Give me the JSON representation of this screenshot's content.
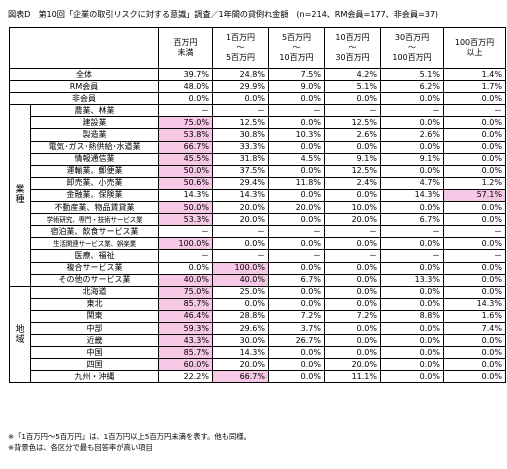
{
  "title": "図表D　第10回「企業の取引リスクに対する意識」調査／1年間の貸倒れ金額　(n=214、RM会員=177、非会員=37)",
  "columns": [
    "百万円\n未満",
    "1百万円\n～\n5百万円",
    "5百万円\n～\n10百万円",
    "10百万円\n～\n30百万円",
    "30百万円\n～\n100百万円",
    "100百万円\n以上"
  ],
  "summary_rows": [
    {
      "label": "全体",
      "values": [
        "39.7%",
        "24.8%",
        "7.5%",
        "4.2%",
        "5.1%",
        "1.4%"
      ],
      "hl": []
    },
    {
      "label": "RM会員",
      "values": [
        "48.0%",
        "29.9%",
        "9.0%",
        "5.1%",
        "6.2%",
        "1.7%"
      ],
      "hl": []
    },
    {
      "label": "非会員",
      "values": [
        "0.0%",
        "0.0%",
        "0.0%",
        "0.0%",
        "0.0%",
        "0.0%"
      ],
      "hl": []
    }
  ],
  "groups": [
    {
      "name": "業\n種",
      "rows": [
        {
          "label": "農業、林業",
          "values": [
            "－",
            "－",
            "－",
            "－",
            "－",
            "－"
          ],
          "hl": []
        },
        {
          "label": "建設業",
          "values": [
            "75.0%",
            "12.5%",
            "0.0%",
            "12.5%",
            "0.0%",
            "0.0%"
          ],
          "hl": [
            0
          ]
        },
        {
          "label": "製造業",
          "values": [
            "53.8%",
            "30.8%",
            "10.3%",
            "2.6%",
            "2.6%",
            "0.0%"
          ],
          "hl": [
            0
          ]
        },
        {
          "label": "電気･ガス･熱供給･水道業",
          "values": [
            "66.7%",
            "33.3%",
            "0.0%",
            "0.0%",
            "0.0%",
            "0.0%"
          ],
          "hl": [
            0
          ]
        },
        {
          "label": "情報通信業",
          "values": [
            "45.5%",
            "31.8%",
            "4.5%",
            "9.1%",
            "9.1%",
            "0.0%"
          ],
          "hl": [
            0
          ]
        },
        {
          "label": "運輸業、郵便業",
          "values": [
            "50.0%",
            "37.5%",
            "0.0%",
            "12.5%",
            "0.0%",
            "0.0%"
          ],
          "hl": [
            0
          ]
        },
        {
          "label": "卸売業、小売業",
          "values": [
            "50.6%",
            "29.4%",
            "11.8%",
            "2.4%",
            "4.7%",
            "1.2%"
          ],
          "hl": [
            0
          ]
        },
        {
          "label": "金融業、保険業",
          "values": [
            "14.3%",
            "14.3%",
            "0.0%",
            "0.0%",
            "14.3%",
            "57.1%"
          ],
          "hl": [
            5
          ]
        },
        {
          "label": "不動産業、物品賃貸業",
          "values": [
            "50.0%",
            "20.0%",
            "20.0%",
            "10.0%",
            "0.0%",
            "0.0%"
          ],
          "hl": [
            0
          ]
        },
        {
          "label": "学術研究、専門・技術サービス業",
          "values": [
            "53.3%",
            "20.0%",
            "0.0%",
            "20.0%",
            "6.7%",
            "0.0%"
          ],
          "hl": [
            0
          ],
          "small": true
        },
        {
          "label": "宿泊業、飲食サービス業",
          "values": [
            "－",
            "－",
            "－",
            "－",
            "－",
            "－"
          ],
          "hl": []
        },
        {
          "label": "生活関連サービス業、娯楽業",
          "values": [
            "100.0%",
            "0.0%",
            "0.0%",
            "0.0%",
            "0.0%",
            "0.0%"
          ],
          "hl": [
            0
          ],
          "small": true
        },
        {
          "label": "医療、福祉",
          "values": [
            "－",
            "－",
            "－",
            "－",
            "－",
            "－"
          ],
          "hl": []
        },
        {
          "label": "複合サービス業",
          "values": [
            "0.0%",
            "100.0%",
            "0.0%",
            "0.0%",
            "0.0%",
            "0.0%"
          ],
          "hl": [
            1
          ]
        },
        {
          "label": "その他のサービス業",
          "values": [
            "40.0%",
            "40.0%",
            "6.7%",
            "0.0%",
            "13.3%",
            "0.0%"
          ],
          "hl": [
            0,
            1
          ]
        }
      ]
    },
    {
      "name": "地\n域",
      "rows": [
        {
          "label": "北海道",
          "values": [
            "75.0%",
            "25.0%",
            "0.0%",
            "0.0%",
            "0.0%",
            "0.0%"
          ],
          "hl": [
            0
          ]
        },
        {
          "label": "東北",
          "values": [
            "85.7%",
            "0.0%",
            "0.0%",
            "0.0%",
            "0.0%",
            "14.3%"
          ],
          "hl": [
            0
          ]
        },
        {
          "label": "関東",
          "values": [
            "46.4%",
            "28.8%",
            "7.2%",
            "7.2%",
            "8.8%",
            "1.6%"
          ],
          "hl": [
            0
          ]
        },
        {
          "label": "中部",
          "values": [
            "59.3%",
            "29.6%",
            "3.7%",
            "0.0%",
            "0.0%",
            "7.4%"
          ],
          "hl": [
            0
          ]
        },
        {
          "label": "近畿",
          "values": [
            "43.3%",
            "30.0%",
            "26.7%",
            "0.0%",
            "0.0%",
            "0.0%"
          ],
          "hl": [
            0
          ]
        },
        {
          "label": "中国",
          "values": [
            "85.7%",
            "14.3%",
            "0.0%",
            "0.0%",
            "0.0%",
            "0.0%"
          ],
          "hl": [
            0
          ]
        },
        {
          "label": "四国",
          "values": [
            "60.0%",
            "20.0%",
            "0.0%",
            "20.0%",
            "0.0%",
            "0.0%"
          ],
          "hl": [
            0
          ]
        },
        {
          "label": "九州・沖縄",
          "values": [
            "22.2%",
            "66.7%",
            "0.0%",
            "11.1%",
            "0.0%",
            "0.0%"
          ],
          "hl": [
            1
          ]
        }
      ]
    }
  ],
  "notes": [
    "※「1百万円～5百万円」は、1百万円以上5百万円未満を表す。他も同様。",
    "※背景色は、各区分で最も回答率が高い項目"
  ],
  "colors": {
    "highlight": "#f7c8e6",
    "border": "#000000"
  }
}
